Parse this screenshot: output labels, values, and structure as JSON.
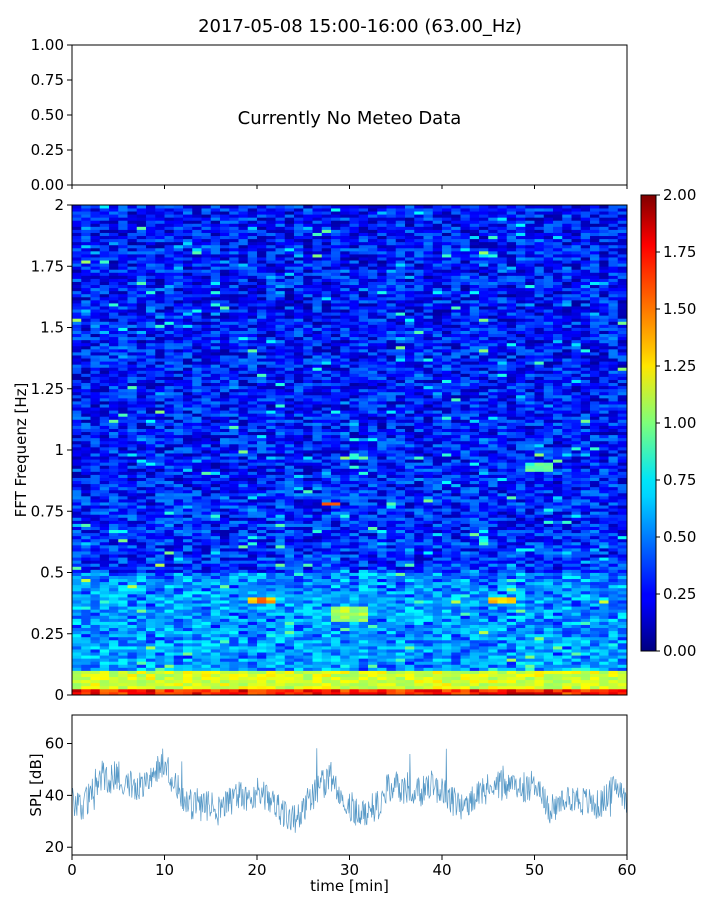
{
  "title": "2017-05-08 15:00-16:00 (63.00_Hz)",
  "chart_data": [
    {
      "type": "line",
      "panel": "meteo",
      "ylim": [
        0,
        1
      ],
      "yticks": [
        "0.00",
        "0.25",
        "0.50",
        "0.75",
        "1.00"
      ],
      "annotation": "Currently No Meteo Data",
      "series": []
    },
    {
      "type": "heatmap",
      "panel": "spectrogram",
      "xlim": [
        0,
        60
      ],
      "ylim": [
        0,
        2
      ],
      "ylabel": "FFT Frequenz [Hz]",
      "yticks": [
        "0",
        "0.25",
        "0.5",
        "0.75",
        "1",
        "1.25",
        "1.5",
        "1.75",
        "2"
      ],
      "colormap": "jet",
      "colorbar": {
        "range": [
          0,
          2
        ],
        "ticks": [
          "0.00",
          "0.25",
          "0.50",
          "0.75",
          "1.00",
          "1.25",
          "1.50",
          "1.75",
          "2.00"
        ]
      },
      "features": [
        {
          "x": [
            0,
            60
          ],
          "y": [
            0,
            0.03
          ],
          "level": 1.9
        },
        {
          "x": [
            0,
            60
          ],
          "y": [
            0.03,
            0.1
          ],
          "level": 1.3
        },
        {
          "x": [
            0,
            60
          ],
          "y": [
            0.1,
            0.5
          ],
          "level": 0.75
        },
        {
          "x": [
            27,
            28.5
          ],
          "y": [
            0.77,
            0.79
          ],
          "level": 1.85
        },
        {
          "x": [
            19,
            22
          ],
          "y": [
            0.38,
            0.4
          ],
          "level": 1.6
        },
        {
          "x": [
            45,
            48
          ],
          "y": [
            0.38,
            0.4
          ],
          "level": 1.5
        },
        {
          "x": [
            49,
            52
          ],
          "y": [
            0.91,
            0.95
          ],
          "level": 1.0
        },
        {
          "x": [
            28,
            32
          ],
          "y": [
            0.3,
            0.36
          ],
          "level": 1.2
        }
      ]
    },
    {
      "type": "line",
      "panel": "spl",
      "xlim": [
        0,
        60
      ],
      "ylim": [
        17,
        71
      ],
      "xlabel": "time [min]",
      "ylabel": "SPL [dB]",
      "xticks": [
        "0",
        "10",
        "20",
        "30",
        "40",
        "50",
        "60"
      ],
      "yticks": [
        "20",
        "40",
        "60"
      ],
      "color": "#1f77b4",
      "series": [
        {
          "x": [
            0,
            1,
            2,
            3,
            4,
            5,
            6,
            7,
            8,
            9,
            10,
            11,
            12,
            13,
            14,
            15,
            16,
            17,
            18,
            19,
            20,
            21,
            22,
            23,
            24,
            25,
            26,
            27,
            28,
            29,
            30,
            31,
            32,
            33,
            34,
            35,
            36,
            37,
            38,
            39,
            40,
            41,
            42,
            43,
            44,
            45,
            46,
            47,
            48,
            49,
            50,
            51,
            52,
            53,
            54,
            55,
            56,
            57,
            58,
            59,
            60
          ],
          "values": [
            38,
            36,
            40,
            48,
            46,
            48,
            45,
            44,
            46,
            50,
            53,
            45,
            39,
            36,
            35,
            36,
            34,
            38,
            40,
            38,
            42,
            40,
            37,
            32,
            31,
            35,
            40,
            44,
            47,
            42,
            36,
            33,
            34,
            36,
            42,
            44,
            42,
            40,
            42,
            44,
            42,
            38,
            36,
            37,
            40,
            42,
            45,
            42,
            44,
            43,
            45,
            38,
            33,
            37,
            40,
            38,
            37,
            36,
            40,
            44,
            39
          ]
        }
      ]
    }
  ]
}
